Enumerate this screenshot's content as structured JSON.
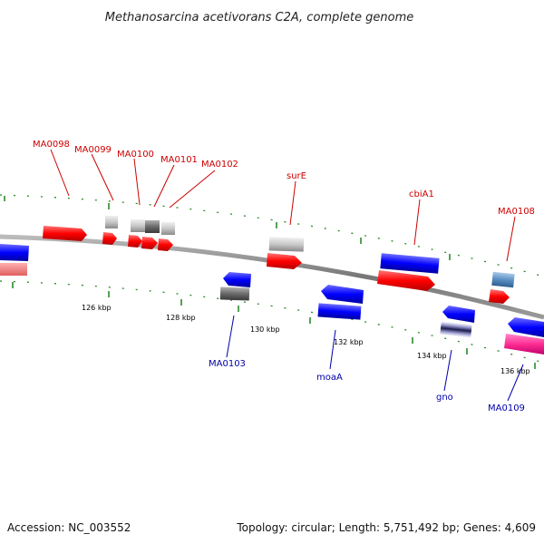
{
  "title": "Methanosarcina acetivorans C2A, complete genome",
  "footer": {
    "accession": "Accession: NC_003552",
    "summary": "Topology: circular; Length: 5,751,492 bp; Genes: 4,609"
  },
  "scale": {
    "ticks": [
      "126 kbp",
      "128 kbp",
      "130 kbp",
      "132 kbp",
      "134 kbp",
      "136 kbp"
    ]
  },
  "colors": {
    "forward_cds": "#ff0000",
    "reverse_cds": "#0000ff",
    "trna": "#ff3399",
    "backbone": "#888888",
    "gc_marks": "#2a8a2a",
    "label_forward": "#cc0000",
    "label_reverse": "#0000aa"
  },
  "forward_labels": [
    "MA0098",
    "MA0099",
    "MA0100",
    "MA0101",
    "MA0102",
    "surE",
    "cbiA1",
    "MA0108"
  ],
  "reverse_labels": [
    "MA0103",
    "moaA",
    "gno",
    "MA0109"
  ]
}
